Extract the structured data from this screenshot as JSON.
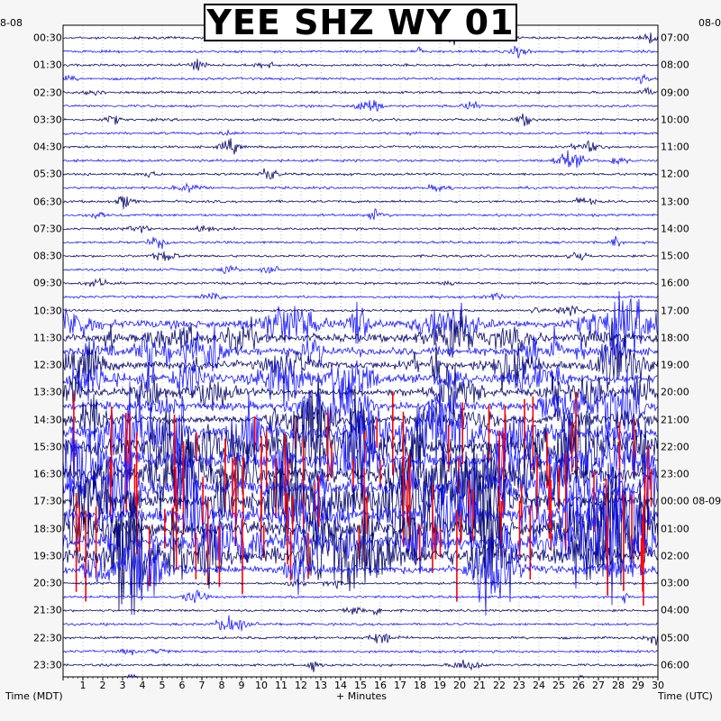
{
  "title": "YEE SHZ WY 01",
  "corner_left": "8-08",
  "corner_right": "08-0",
  "left_axis_title": "Time (MDT)",
  "bottom_axis_title": "+ Minutes",
  "right_axis_title": "Time (UTC)",
  "colors": {
    "background": "#f6f6f6",
    "plot_bg": "#ffffff",
    "trace_navy": "#0a0a6e",
    "trace_blue": "#1a1aff",
    "trace_red": "#ff0000",
    "grid": "#000000"
  },
  "chart_data": {
    "type": "seismogram",
    "x_unit": "minutes",
    "xlim": [
      0,
      30
    ],
    "x_ticks": [
      1,
      2,
      3,
      4,
      5,
      6,
      7,
      8,
      9,
      10,
      11,
      12,
      13,
      14,
      15,
      16,
      17,
      18,
      19,
      20,
      21,
      22,
      23,
      24,
      25,
      26,
      27,
      28,
      29,
      30
    ],
    "rows_per_hour": 2,
    "row_count": 48,
    "left_labels": [
      "00:30",
      "01:30",
      "02:30",
      "03:30",
      "04:30",
      "05:30",
      "06:30",
      "07:30",
      "08:30",
      "09:30",
      "10:30",
      "11:30",
      "12:30",
      "13:30",
      "14:30",
      "15:30",
      "16:30",
      "17:30",
      "18:30",
      "19:30",
      "20:30",
      "21:30",
      "22:30",
      "23:30"
    ],
    "right_labels": [
      "07:00",
      "08:00",
      "09:00",
      "10:00",
      "11:00",
      "12:00",
      "13:00",
      "14:00",
      "15:00",
      "16:00",
      "17:00",
      "18:00",
      "19:00",
      "20:00",
      "21:00",
      "22:00",
      "23:00",
      "00:00 08-09",
      "01:00",
      "02:00",
      "03:00",
      "04:00",
      "05:00",
      "06:00"
    ],
    "color_cycle": [
      "trace_navy",
      "trace_blue"
    ],
    "clipped_color": "trace_red",
    "noisy_rows_start": 21,
    "noisy_rows_end": 39,
    "saturated_rows_start": 29,
    "saturated_rows_end": 38
  }
}
